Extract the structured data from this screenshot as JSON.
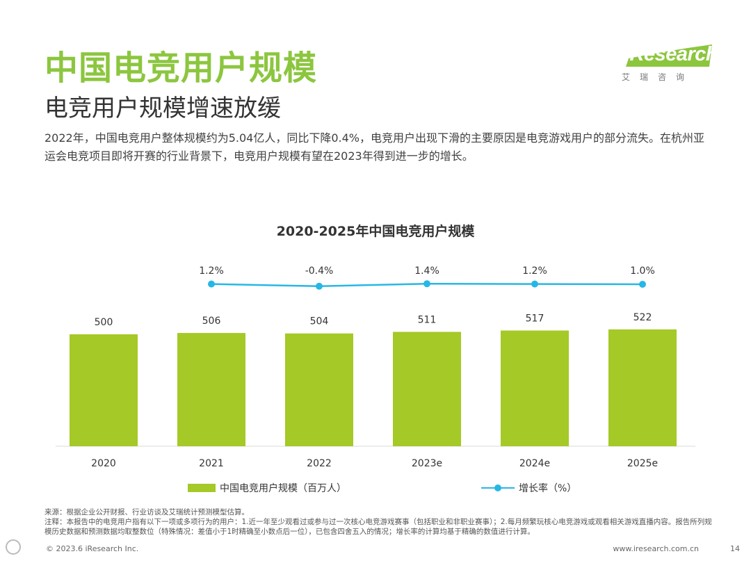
{
  "header": {
    "title": "中国电竞用户规模",
    "subtitle": "电竞用户规模增速放缓",
    "intro": "2022年，中国电竞用户整体规模约为5.04亿人，同比下降0.4%，电竞用户出现下滑的主要原因是电竞游戏用户的部分流失。在杭州亚运会电竞项目即将开赛的行业背景下，电竞用户规模有望在2023年得到进一步的增长。"
  },
  "logo": {
    "brand": "iResearch",
    "cn": "艾瑞咨询"
  },
  "chart_data": {
    "type": "bar",
    "title": "2020-2025年中国电竞用户规模",
    "categories": [
      "2020",
      "2021",
      "2022",
      "2023e",
      "2024e",
      "2025e"
    ],
    "series": [
      {
        "name": "中国电竞用户规模（百万人）",
        "type": "bar",
        "color": "#a5c926",
        "values": [
          500,
          506,
          504,
          511,
          517,
          522
        ],
        "labels": [
          "500",
          "506",
          "504",
          "511",
          "517",
          "522"
        ]
      },
      {
        "name": "增长率（%）",
        "type": "line",
        "color": "#27b7e6",
        "values": [
          null,
          1.2,
          -0.4,
          1.4,
          1.2,
          1.0
        ],
        "labels": [
          "",
          "1.2%",
          "-0.4%",
          "1.4%",
          "1.2%",
          "1.0%"
        ]
      }
    ],
    "legend_position": "bottom",
    "grid": false
  },
  "notes": {
    "source": "来源：根据企业公开财报、行业访谈及艾瑞统计预测模型估算。",
    "remark": "注释：本报告中的电竞用户指有以下一项或多项行为的用户：1.近一年至少观看过或参与过一次核心电竞游戏赛事（包括职业和非职业赛事）；2.每月频繁玩核心电竞游戏或观看相关游戏直播内容。报告所列规模历史数据和预测数据均取整数位（特殊情况：差值小于1时精确至小数点后一位），已包含四舍五入的情况；增长率的计算均基于精确的数值进行计算。"
  },
  "footer": {
    "copyright": "© 2023.6 iResearch Inc.",
    "url": "www.iresearch.com.cn",
    "page": "14"
  }
}
